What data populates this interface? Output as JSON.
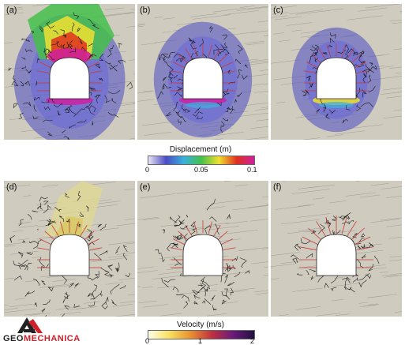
{
  "panels": [
    {
      "label": "(a)",
      "type": "displacement",
      "level": "high"
    },
    {
      "label": "(b)",
      "type": "displacement",
      "level": "mid"
    },
    {
      "label": "(c)",
      "type": "displacement",
      "level": "low"
    },
    {
      "label": "(d)",
      "type": "velocity",
      "level": "high"
    },
    {
      "label": "(e)",
      "type": "velocity",
      "level": "mid"
    },
    {
      "label": "(f)",
      "type": "velocity",
      "level": "low"
    }
  ],
  "displacement_scale": {
    "title": "Displacement (m)",
    "ticks": [
      "0",
      "0.05",
      "0.1"
    ],
    "colors": [
      "#e8e6f4",
      "#4b4bc4",
      "#3ab0e0",
      "#44c04a",
      "#f0e030",
      "#e03020",
      "#d020a0"
    ]
  },
  "velocity_scale": {
    "title": "Velocity (m/s)",
    "ticks": [
      "0",
      "1",
      "2"
    ],
    "colors": [
      "#ffffe8",
      "#f8e060",
      "#e89030",
      "#c03040",
      "#6a1a7a",
      "#201040"
    ]
  },
  "logo": {
    "text_prefix": "GEO",
    "text_suffix": "MECHANICA",
    "prefix_color": "#222222",
    "suffix_color": "#d0202a"
  },
  "colors": {
    "rock": "#cfccbf",
    "joints": "#8a8880",
    "fracture": "#1a1a1a",
    "bolt": "#c83a3a"
  }
}
